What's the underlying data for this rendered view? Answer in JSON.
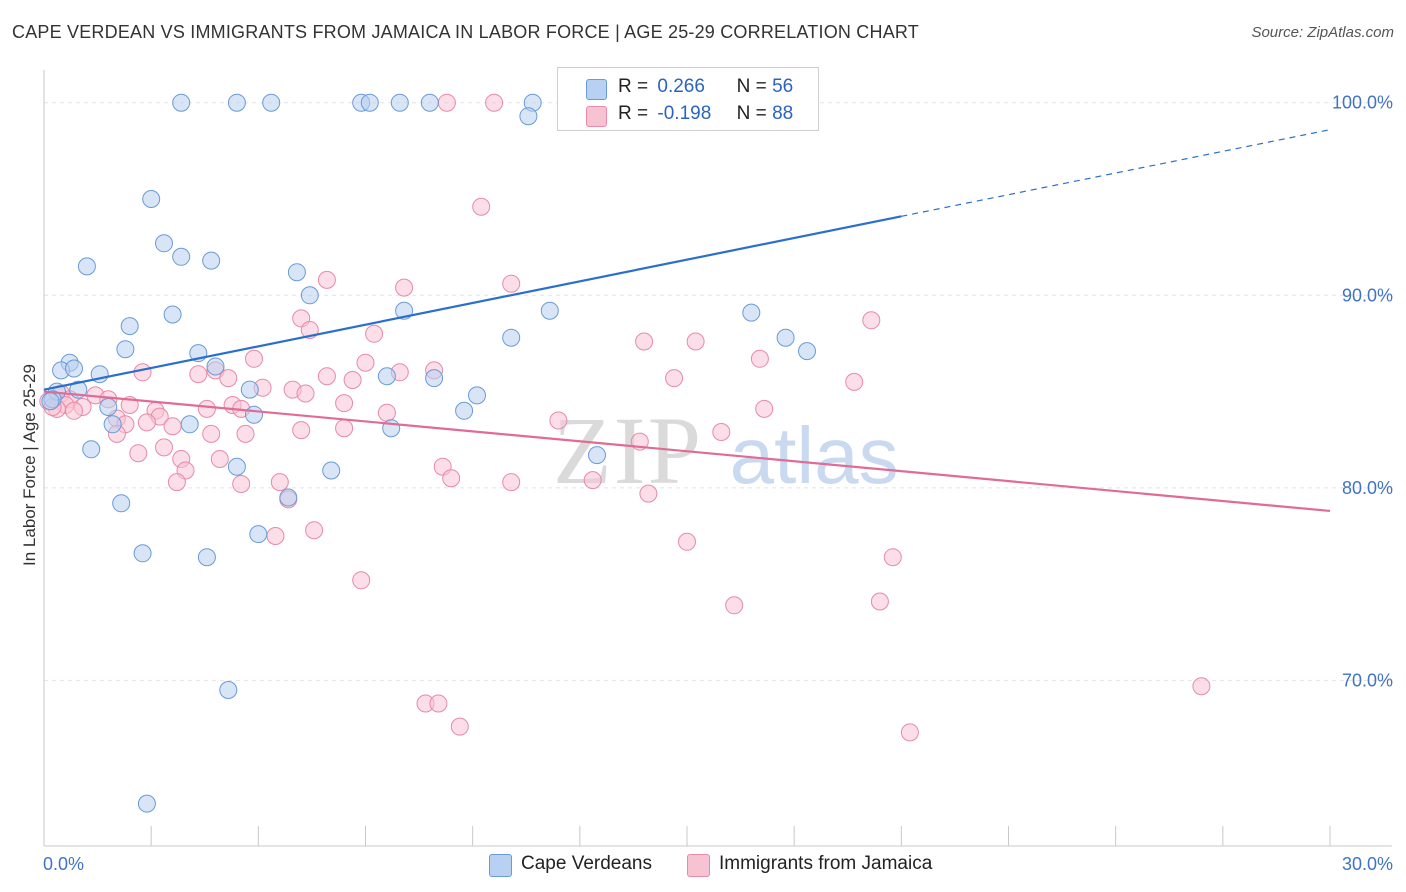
{
  "header": {
    "title": "CAPE VERDEAN VS IMMIGRANTS FROM JAMAICA IN LABOR FORCE | AGE 25-29 CORRELATION CHART",
    "source": "Source: ZipAtlas.com"
  },
  "watermark": {
    "zip": "ZIP",
    "atlas": "atlas"
  },
  "legend": {
    "series": [
      {
        "r_label": "R =",
        "r_value": "0.266",
        "n_label": "N =",
        "n_value": "56",
        "name": "Cape Verdeans"
      },
      {
        "r_label": "R =",
        "r_value": "-0.198",
        "n_label": "N =",
        "n_value": "88",
        "name": "Immigrants from Jamaica"
      }
    ]
  },
  "colors": {
    "blue_fill": "#b8d0f1",
    "blue_stroke": "#6a9ad8",
    "blue_line": "#2a6fce",
    "pink_fill": "#f7c3d3",
    "pink_stroke": "#e88aa8",
    "pink_line": "#e06b96",
    "axis_tick_text": "#3f74c4",
    "grid": "#e2e2e2"
  },
  "chart_data": {
    "type": "scatter",
    "title": "CAPE VERDEAN VS IMMIGRANTS FROM JAMAICA IN LABOR FORCE | AGE 25-29 CORRELATION CHART",
    "xlabel": "",
    "ylabel": "In Labor Force | Age 25-29",
    "xlim": [
      0,
      30
    ],
    "ylim": [
      61.4,
      101.7
    ],
    "x_tick_labels": [
      "0.0%",
      "30.0%"
    ],
    "y_ticks": [
      70,
      80,
      90,
      100
    ],
    "y_tick_labels": [
      "70.0%",
      "80.0%",
      "90.0%",
      "100.0%"
    ],
    "grid": true,
    "legend_position": "top-center",
    "series": [
      {
        "name": "Cape Verdeans",
        "color": "blue",
        "R": 0.266,
        "N": 56,
        "trend": {
          "x0": 0.0,
          "y0": 85.1,
          "x1": 20.0,
          "y1": 94.1,
          "dash_to_x": 30.0,
          "dash_to_y": 98.6
        },
        "points": [
          [
            3.2,
            100
          ],
          [
            4.5,
            100
          ],
          [
            5.3,
            100
          ],
          [
            7.4,
            100
          ],
          [
            7.6,
            100
          ],
          [
            8.3,
            100
          ],
          [
            9.0,
            100
          ],
          [
            11.4,
            100
          ],
          [
            11.3,
            99.3
          ],
          [
            2.5,
            95.0
          ],
          [
            2.8,
            92.7
          ],
          [
            3.2,
            92.0
          ],
          [
            3.9,
            91.8
          ],
          [
            1.0,
            91.5
          ],
          [
            5.9,
            91.2
          ],
          [
            6.2,
            90.0
          ],
          [
            3.0,
            89.0
          ],
          [
            8.4,
            89.2
          ],
          [
            11.8,
            89.2
          ],
          [
            16.5,
            89.1
          ],
          [
            2.0,
            88.4
          ],
          [
            10.9,
            87.8
          ],
          [
            17.3,
            87.8
          ],
          [
            1.9,
            87.2
          ],
          [
            3.6,
            87.0
          ],
          [
            17.8,
            87.1
          ],
          [
            0.6,
            86.5
          ],
          [
            0.4,
            86.1
          ],
          [
            0.7,
            86.2
          ],
          [
            1.3,
            85.9
          ],
          [
            4.0,
            86.3
          ],
          [
            8.0,
            85.8
          ],
          [
            9.1,
            85.7
          ],
          [
            0.3,
            85.0
          ],
          [
            0.8,
            85.1
          ],
          [
            4.8,
            85.1
          ],
          [
            0.2,
            84.6
          ],
          [
            1.5,
            84.2
          ],
          [
            4.9,
            83.8
          ],
          [
            9.8,
            84.0
          ],
          [
            10.1,
            84.8
          ],
          [
            1.6,
            83.3
          ],
          [
            3.4,
            83.3
          ],
          [
            8.1,
            83.1
          ],
          [
            1.1,
            82.0
          ],
          [
            12.9,
            81.7
          ],
          [
            4.5,
            81.1
          ],
          [
            6.7,
            80.9
          ],
          [
            5.7,
            79.5
          ],
          [
            1.8,
            79.2
          ],
          [
            5.0,
            77.6
          ],
          [
            2.3,
            76.6
          ],
          [
            3.8,
            76.4
          ],
          [
            4.3,
            69.5
          ],
          [
            2.4,
            63.6
          ],
          [
            0.15,
            84.5
          ]
        ]
      },
      {
        "name": "Immigrants from Jamaica",
        "color": "pink",
        "R": -0.198,
        "N": 88,
        "trend": {
          "x0": 0.0,
          "y0": 85.0,
          "x1": 30.0,
          "y1": 78.8
        },
        "points": [
          [
            9.4,
            100
          ],
          [
            10.5,
            100
          ],
          [
            12.4,
            100
          ],
          [
            10.2,
            94.6
          ],
          [
            6.6,
            90.8
          ],
          [
            8.4,
            90.4
          ],
          [
            10.9,
            90.6
          ],
          [
            6.0,
            88.8
          ],
          [
            6.2,
            88.2
          ],
          [
            19.3,
            88.7
          ],
          [
            7.7,
            88.0
          ],
          [
            14.0,
            87.6
          ],
          [
            15.2,
            87.6
          ],
          [
            4.9,
            86.7
          ],
          [
            16.7,
            86.7
          ],
          [
            2.3,
            86.0
          ],
          [
            4.0,
            86.1
          ],
          [
            7.5,
            86.5
          ],
          [
            8.3,
            86.0
          ],
          [
            9.1,
            86.1
          ],
          [
            3.6,
            85.9
          ],
          [
            4.3,
            85.7
          ],
          [
            6.6,
            85.8
          ],
          [
            7.2,
            85.6
          ],
          [
            14.7,
            85.7
          ],
          [
            18.9,
            85.5
          ],
          [
            5.1,
            85.2
          ],
          [
            5.8,
            85.1
          ],
          [
            6.1,
            84.9
          ],
          [
            0.4,
            84.9
          ],
          [
            0.6,
            84.6
          ],
          [
            1.2,
            84.8
          ],
          [
            1.5,
            84.6
          ],
          [
            0.9,
            84.2
          ],
          [
            0.5,
            84.3
          ],
          [
            0.3,
            84.1
          ],
          [
            0.7,
            84.0
          ],
          [
            2.0,
            84.3
          ],
          [
            2.6,
            84.0
          ],
          [
            3.8,
            84.1
          ],
          [
            4.4,
            84.3
          ],
          [
            4.6,
            84.1
          ],
          [
            7.0,
            84.4
          ],
          [
            8.0,
            83.9
          ],
          [
            16.8,
            84.1
          ],
          [
            1.7,
            83.6
          ],
          [
            2.7,
            83.7
          ],
          [
            2.4,
            83.4
          ],
          [
            1.9,
            83.3
          ],
          [
            3.0,
            83.2
          ],
          [
            6.0,
            83.0
          ],
          [
            7.0,
            83.1
          ],
          [
            12.0,
            83.5
          ],
          [
            15.8,
            82.9
          ],
          [
            1.7,
            82.8
          ],
          [
            3.9,
            82.8
          ],
          [
            4.7,
            82.8
          ],
          [
            13.9,
            82.4
          ],
          [
            2.2,
            81.8
          ],
          [
            2.8,
            82.1
          ],
          [
            3.2,
            81.5
          ],
          [
            4.1,
            81.5
          ],
          [
            9.3,
            81.1
          ],
          [
            3.3,
            80.9
          ],
          [
            3.1,
            80.3
          ],
          [
            4.6,
            80.2
          ],
          [
            5.5,
            80.3
          ],
          [
            9.5,
            80.5
          ],
          [
            10.9,
            80.3
          ],
          [
            12.8,
            80.4
          ],
          [
            14.1,
            79.7
          ],
          [
            5.7,
            79.4
          ],
          [
            6.3,
            77.8
          ],
          [
            5.4,
            77.5
          ],
          [
            15.0,
            77.2
          ],
          [
            19.8,
            76.4
          ],
          [
            7.4,
            75.2
          ],
          [
            16.1,
            73.9
          ],
          [
            19.5,
            74.1
          ],
          [
            27.0,
            69.7
          ],
          [
            8.9,
            68.8
          ],
          [
            9.2,
            68.8
          ],
          [
            9.7,
            67.6
          ],
          [
            20.2,
            67.3
          ],
          [
            0.1,
            84.5
          ],
          [
            0.2,
            84.2
          ],
          [
            13.0,
            100
          ],
          [
            12.2,
            100
          ]
        ]
      }
    ]
  }
}
